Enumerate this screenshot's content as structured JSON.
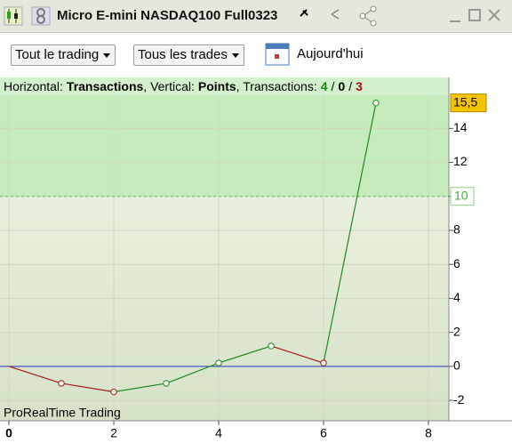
{
  "window": {
    "title": "Micro E-mini NASDAQ100 Full0323"
  },
  "toolbar": {
    "filter1": "Tout le trading",
    "filter2": "Tous les trades",
    "date": "Aujourd'hui"
  },
  "chart_data": {
    "type": "line",
    "header": {
      "h_label": "Horizontal:",
      "h_value": "Transactions",
      "v_label": ", Vertical:",
      "v_value": "Points",
      "t_label": ", Transactions:",
      "wins": 4,
      "sep": "/",
      "neutral": 0,
      "losses": 3
    },
    "watermark": "ProRealTime Trading",
    "series": [
      {
        "x": [
          0,
          1,
          2,
          3,
          4,
          5,
          6,
          7
        ],
        "values": [
          0,
          -1,
          -1.5,
          -1,
          0.2,
          1.2,
          0.2,
          15.5
        ],
        "value_labels": [
          null,
          null,
          null,
          null,
          null,
          null,
          null,
          "15,5"
        ]
      }
    ],
    "up_color": "#1f8a1f",
    "down_color": "#a81818",
    "zero_color": "#2233cc",
    "threshold": {
      "value": 10,
      "label": "10"
    },
    "xlim": [
      -0.17,
      8.39
    ],
    "xticks": [
      0,
      2,
      4,
      6,
      8
    ],
    "ylim": [
      -3.2,
      17
    ],
    "yticks": [
      -2,
      0,
      2,
      4,
      6,
      8,
      10,
      12,
      14
    ],
    "grid": true
  }
}
